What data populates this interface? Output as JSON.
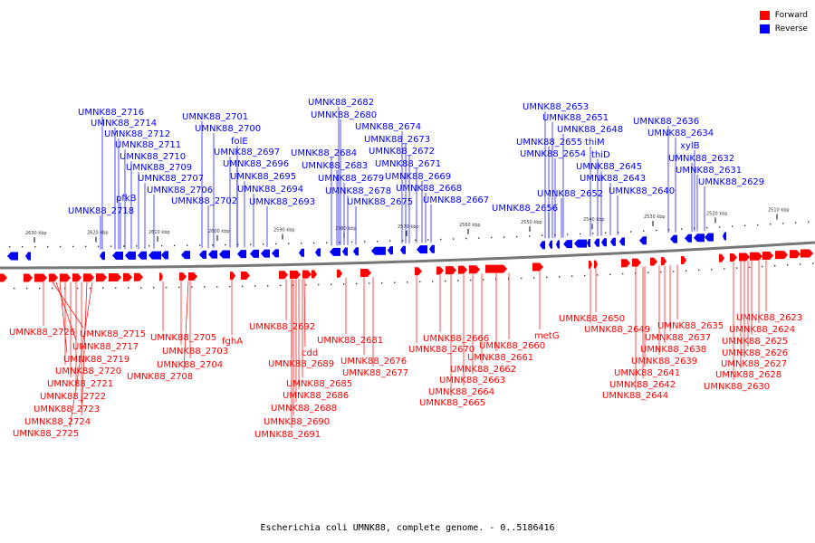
{
  "legend": {
    "forward_label": "Forward",
    "reverse_label": "Reverse",
    "forward_color": "#ff0000",
    "reverse_color": "#0000ff"
  },
  "caption": "Escherichia coli UMNK88, complete genome. - 0..5186416",
  "ticks": [
    "2630 kbp",
    "2620 kbp",
    "2610 kbp",
    "2600 kbp",
    "2590 kbp",
    "2580 kbp",
    "2570 kbp",
    "2560 kbp",
    "2550 kbp",
    "2540 kbp",
    "2530 kbp",
    "2520 kbp",
    "2510 kbp"
  ],
  "reverse_genes": [
    "UMNK88_2716",
    "UMNK88_2714",
    "UMNK88_2712",
    "UMNK88_2711",
    "UMNK88_2710",
    "UMNK88_2709",
    "UMNK88_2707",
    "pfkB",
    "UMNK88_2706",
    "UMNK88_2718",
    "UMNK88_2701",
    "UMNK88_2700",
    "folE",
    "UMNK88_2697",
    "UMNK88_2696",
    "UMNK88_2695",
    "UMNK88_2694",
    "UMNK88_2702",
    "UMNK88_2693",
    "UMNK88_2682",
    "UMNK88_2680",
    "UMNK88_2674",
    "UMNK88_2673",
    "UMNK88_2684",
    "UMNK88_2672",
    "UMNK88_2683",
    "UMNK88_2671",
    "UMNK88_2679",
    "UMNK88_2669",
    "UMNK88_2678",
    "UMNK88_2668",
    "UMNK88_2675",
    "UMNK88_2667",
    "UMNK88_2653",
    "UMNK88_2651",
    "UMNK88_2648",
    "UMNK88_2655",
    "thiM",
    "UMNK88_2654",
    "thiD",
    "UMNK88_2645",
    "UMNK88_2643",
    "UMNK88_2652",
    "UMNK88_2640",
    "UMNK88_2656",
    "UMNK88_2636",
    "UMNK88_2634",
    "xylB",
    "UMNK88_2632",
    "UMNK88_2631",
    "UMNK88_2629"
  ],
  "forward_genes": [
    "UMNK88_2726",
    "UMNK88_2715",
    "UMNK88_2717",
    "UMNK88_2719",
    "UMNK88_2720",
    "UMNK88_2721",
    "UMNK88_2722",
    "UMNK88_2723",
    "UMNK88_2724",
    "UMNK88_2725",
    "UMNK88_2705",
    "UMNK88_2703",
    "UMNK88_2704",
    "UMNK88_2708",
    "fghA",
    "UMNK88_2692",
    "UMNK88_2689",
    "cdd",
    "UMNK88_2685",
    "UMNK88_2686",
    "UMNK88_2688",
    "UMNK88_2690",
    "UMNK88_2691",
    "UMNK88_2681",
    "UMNK88_2676",
    "UMNK88_2677",
    "UMNK88_2670",
    "UMNK88_2666",
    "UMNK88_2660",
    "UMNK88_2661",
    "UMNK88_2662",
    "UMNK88_2663",
    "UMNK88_2664",
    "UMNK88_2665",
    "metG",
    "UMNK88_2650",
    "UMNK88_2649",
    "UMNK88_2635",
    "UMNK88_2637",
    "UMNK88_2638",
    "UMNK88_2639",
    "UMNK88_2641",
    "UMNK88_2642",
    "UMNK88_2644",
    "UMNK88_2623",
    "UMNK88_2624",
    "UMNK88_2625",
    "UMNK88_2626",
    "UMNK88_2627",
    "UMNK88_2628",
    "UMNK88_2630"
  ]
}
